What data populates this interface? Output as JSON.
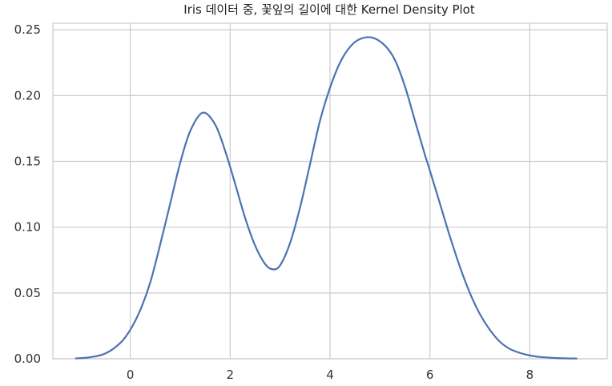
{
  "chart_data": {
    "type": "line",
    "title": "Iris 데이터 중, 꽃잎의 길이에 대한 Kernel Density Plot",
    "xlabel": "",
    "ylabel": "",
    "xlim": [
      -1.55,
      9.55
    ],
    "ylim": [
      0,
      0.255
    ],
    "grid": true,
    "x_ticks": [
      {
        "value": 0,
        "label": "0"
      },
      {
        "value": 2,
        "label": "2"
      },
      {
        "value": 4,
        "label": "4"
      },
      {
        "value": 6,
        "label": "6"
      },
      {
        "value": 8,
        "label": "8"
      }
    ],
    "y_ticks": [
      {
        "value": 0.0,
        "label": "0.00"
      },
      {
        "value": 0.05,
        "label": "0.05"
      },
      {
        "value": 0.1,
        "label": "0.10"
      },
      {
        "value": 0.15,
        "label": "0.15"
      },
      {
        "value": 0.2,
        "label": "0.20"
      },
      {
        "value": 0.25,
        "label": "0.25"
      }
    ],
    "series": [
      {
        "color": "#4c72b0",
        "x": [
          -1.1,
          -0.8,
          -0.5,
          -0.2,
          0.0,
          0.2,
          0.4,
          0.6,
          0.8,
          1.0,
          1.2,
          1.45,
          1.7,
          1.9,
          2.1,
          2.3,
          2.5,
          2.7,
          2.85,
          3.0,
          3.2,
          3.4,
          3.6,
          3.8,
          4.0,
          4.2,
          4.4,
          4.6,
          4.85,
          5.1,
          5.3,
          5.5,
          5.7,
          5.9,
          6.0,
          6.2,
          6.4,
          6.6,
          6.8,
          7.0,
          7.2,
          7.4,
          7.6,
          7.8,
          8.0,
          8.2,
          8.5,
          8.75,
          8.95
        ],
        "y": [
          0.0003,
          0.0012,
          0.004,
          0.012,
          0.022,
          0.037,
          0.058,
          0.087,
          0.118,
          0.149,
          0.173,
          0.187,
          0.178,
          0.158,
          0.133,
          0.107,
          0.086,
          0.072,
          0.068,
          0.071,
          0.088,
          0.115,
          0.148,
          0.181,
          0.206,
          0.225,
          0.237,
          0.243,
          0.244,
          0.238,
          0.227,
          0.207,
          0.181,
          0.155,
          0.143,
          0.118,
          0.093,
          0.07,
          0.05,
          0.034,
          0.022,
          0.013,
          0.0075,
          0.0045,
          0.0025,
          0.0014,
          0.0006,
          0.0003,
          0.0002
        ]
      }
    ]
  }
}
